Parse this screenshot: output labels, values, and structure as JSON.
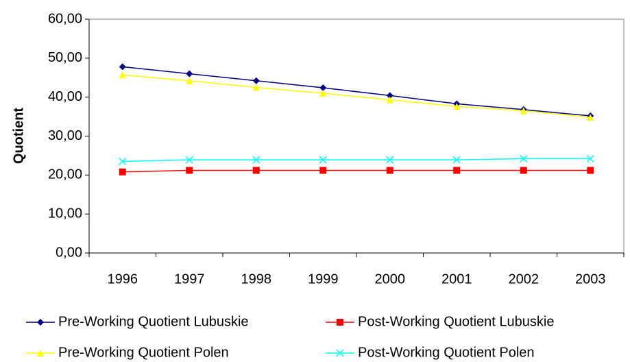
{
  "chart_data": {
    "type": "line",
    "y_label": "Quotient",
    "categories": [
      "1996",
      "1997",
      "1998",
      "1999",
      "2000",
      "2001",
      "2002",
      "2003"
    ],
    "series": [
      {
        "name": "Pre-Working Quotient Lubuskie",
        "color": "#000080",
        "marker": "diamond",
        "values": [
          47.8,
          46.0,
          44.2,
          42.4,
          40.4,
          38.3,
          36.8,
          35.2
        ]
      },
      {
        "name": "Post-Working Quotient Lubuskie",
        "color": "#ff0000",
        "marker": "square",
        "values": [
          20.8,
          21.2,
          21.2,
          21.2,
          21.2,
          21.2,
          21.2,
          21.2
        ]
      },
      {
        "name": "Pre-Working Quotient Polen",
        "color": "#ffff00",
        "marker": "triangle",
        "values": [
          45.7,
          44.2,
          42.5,
          41.0,
          39.3,
          37.6,
          36.5,
          34.8
        ]
      },
      {
        "name": "Post-Working Quotient Polen",
        "color": "#00ffff",
        "marker": "x",
        "values": [
          23.5,
          23.9,
          23.9,
          23.9,
          23.9,
          23.9,
          24.2,
          24.2
        ]
      }
    ],
    "ylim": [
      0,
      60
    ],
    "yticks": [
      {
        "value": 0,
        "label": "0,00"
      },
      {
        "value": 10,
        "label": "10,00"
      },
      {
        "value": 20,
        "label": "20,00"
      },
      {
        "value": 30,
        "label": "30,00"
      },
      {
        "value": 40,
        "label": "40,00"
      },
      {
        "value": 50,
        "label": "50,00"
      },
      {
        "value": 60,
        "label": "60,00"
      }
    ],
    "grid": false,
    "legend": "bottom"
  }
}
